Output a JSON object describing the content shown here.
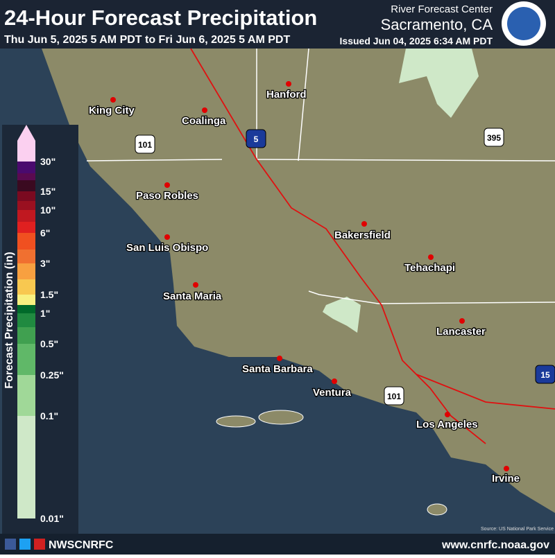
{
  "header": {
    "title": "24-Hour Forecast Precipitation",
    "subtitle": "Thu Jun 5, 2025 5 AM PDT to Fri Jun 6, 2025 5 AM PDT",
    "office_line1": "River Forecast Center",
    "office_line2": "Sacramento, CA",
    "issued": "Issued Jun 04, 2025 6:34 AM PDT"
  },
  "legend": {
    "title": "Forecast Precipitation (in)",
    "labels": [
      "30\"",
      "15\"",
      "10\"",
      "6\"",
      "3\"",
      "1.5\"",
      "1\"",
      "0.5\"",
      "0.25\"",
      "0.1\"",
      "0.01\""
    ]
  },
  "cities": [
    "King City",
    "Coalinga",
    "Hanford",
    "Paso Robles",
    "San Luis Obispo",
    "Santa Maria",
    "Bakersfield",
    "Tehachapi",
    "Lancaster",
    "Santa Barbara",
    "Ventura",
    "Los Angeles",
    "Irvine"
  ],
  "highways": [
    "101",
    "5",
    "395",
    "101",
    "15"
  ],
  "footer": {
    "social": "NWSCNRFC",
    "website": "www.cnrfc.noaa.gov",
    "source": "Source: US National Park Service"
  }
}
